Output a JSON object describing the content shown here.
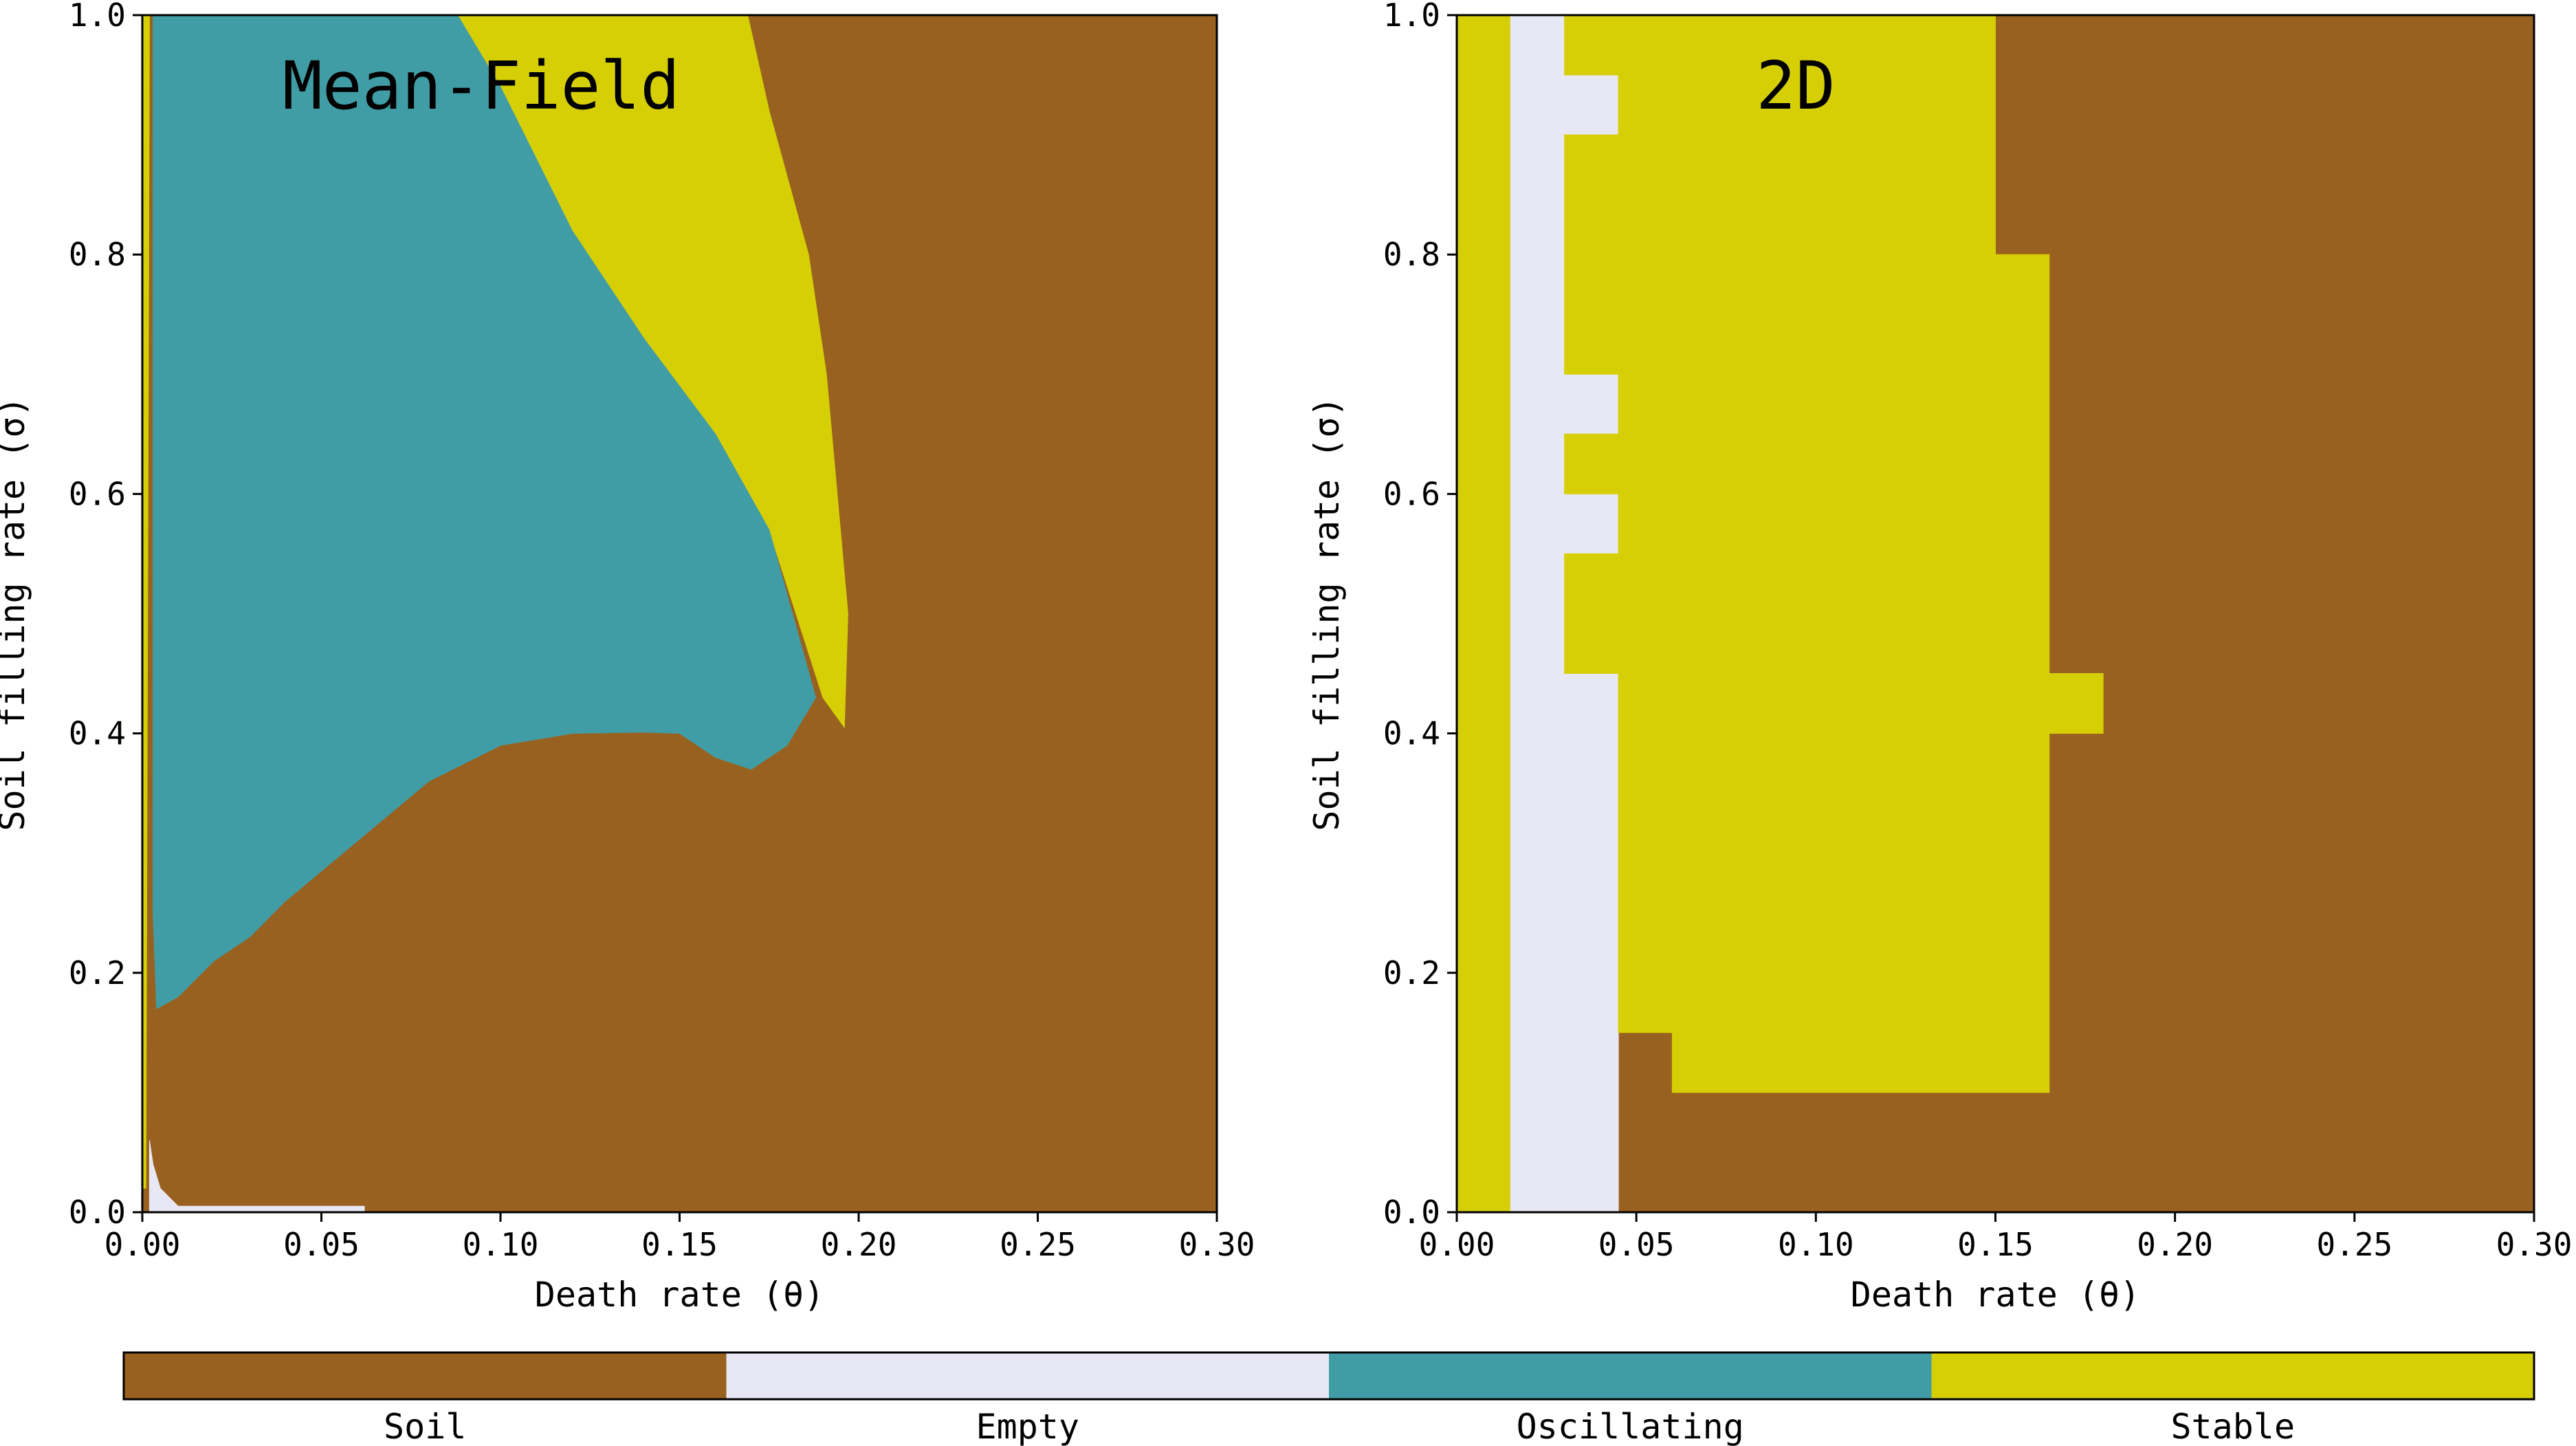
{
  "colors": {
    "soil": "#99611f",
    "empty": "#e8e8f4",
    "oscillating": "#419da5",
    "stable": "#d6cf05"
  },
  "chart_data": [
    {
      "type": "heatmap",
      "title": "Mean-Field",
      "xlabel": "Death rate (θ)",
      "ylabel": "Soil filling rate (σ)",
      "xlim": [
        0,
        0.3
      ],
      "ylim": [
        0,
        1
      ],
      "xticks": [
        "0.00",
        "0.05",
        "0.10",
        "0.15",
        "0.20",
        "0.25",
        "0.30"
      ],
      "yticks": [
        "0.0",
        "0.2",
        "0.4",
        "0.6",
        "0.8",
        "1.0"
      ],
      "regions": [
        {
          "state": "soil",
          "polygon": [
            [
              0,
              0
            ],
            [
              0.3,
              0
            ],
            [
              0.3,
              1
            ],
            [
              0,
              1
            ]
          ]
        },
        {
          "state": "stable",
          "polygon": [
            [
              0.001,
              0.02
            ],
            [
              0.002,
              1.0
            ],
            [
              0.088,
              1.0
            ],
            [
              0.1,
              0.94
            ],
            [
              0.12,
              0.82
            ],
            [
              0.14,
              0.73
            ],
            [
              0.16,
              0.65
            ],
            [
              0.175,
              0.57
            ],
            [
              0.19,
              0.43
            ],
            [
              0.196,
              0.405
            ],
            [
              0.197,
              0.5
            ],
            [
              0.191,
              0.7
            ],
            [
              0.186,
              0.8
            ],
            [
              0.175,
              0.92
            ],
            [
              0.169,
              1.0
            ],
            [
              0.001,
              1.0
            ],
            [
              0.0,
              1.0
            ],
            [
              0.0,
              0.02
            ]
          ]
        },
        {
          "state": "oscillating",
          "polygon": [
            [
              0.003,
              1.0
            ],
            [
              0.088,
              1.0
            ],
            [
              0.1,
              0.94
            ],
            [
              0.12,
              0.82
            ],
            [
              0.14,
              0.73
            ],
            [
              0.16,
              0.65
            ],
            [
              0.175,
              0.57
            ],
            [
              0.188,
              0.43
            ],
            [
              0.18,
              0.39
            ],
            [
              0.17,
              0.37
            ],
            [
              0.16,
              0.38
            ],
            [
              0.15,
              0.4
            ],
            [
              0.14,
              0.401
            ],
            [
              0.12,
              0.4
            ],
            [
              0.1,
              0.39
            ],
            [
              0.08,
              0.36
            ],
            [
              0.06,
              0.31
            ],
            [
              0.04,
              0.26
            ],
            [
              0.03,
              0.23
            ],
            [
              0.02,
              0.21
            ],
            [
              0.01,
              0.18
            ],
            [
              0.004,
              0.17
            ],
            [
              0.003,
              0.25
            ],
            [
              0.003,
              0.33
            ]
          ]
        },
        {
          "state": "empty",
          "polygon": [
            [
              0.002,
              0.0
            ],
            [
              0.062,
              0.0
            ],
            [
              0.062,
              0.005
            ],
            [
              0.01,
              0.005
            ],
            [
              0.005,
              0.02
            ],
            [
              0.003,
              0.04
            ],
            [
              0.002,
              0.06
            ]
          ]
        }
      ]
    },
    {
      "type": "heatmap",
      "title": "2D",
      "xlabel": "Death rate (θ)",
      "ylabel": "Soil filling rate (σ)",
      "xlim": [
        0,
        0.3
      ],
      "ylim": [
        0,
        1
      ],
      "xticks": [
        "0.00",
        "0.05",
        "0.10",
        "0.15",
        "0.20",
        "0.25",
        "0.30"
      ],
      "yticks": [
        "0.0",
        "0.2",
        "0.4",
        "0.6",
        "0.8",
        "1.0"
      ],
      "regions": [
        {
          "state": "soil",
          "polygon": [
            [
              0,
              0
            ],
            [
              0.3,
              0
            ],
            [
              0.3,
              1
            ],
            [
              0,
              1
            ]
          ]
        },
        {
          "state": "stable",
          "polygon": [
            [
              0,
              0
            ],
            [
              0.015,
              0
            ],
            [
              0.015,
              1
            ],
            [
              0,
              1
            ]
          ]
        },
        {
          "state": "empty",
          "polygon": [
            [
              0.015,
              0
            ],
            [
              0.045,
              0
            ],
            [
              0.045,
              1
            ],
            [
              0.015,
              1
            ]
          ]
        },
        {
          "state": "stable",
          "polygon": [
            [
              0.045,
              0.15
            ],
            [
              0.06,
              0.15
            ],
            [
              0.06,
              0.1
            ],
            [
              0.165,
              0.1
            ],
            [
              0.165,
              0.4
            ],
            [
              0.18,
              0.4
            ],
            [
              0.18,
              0.45
            ],
            [
              0.165,
              0.45
            ],
            [
              0.165,
              0.8
            ],
            [
              0.15,
              0.8
            ],
            [
              0.15,
              1.0
            ],
            [
              0.03,
              1.0
            ],
            [
              0.03,
              0.95
            ],
            [
              0.045,
              0.95
            ],
            [
              0.045,
              0.9
            ],
            [
              0.03,
              0.9
            ],
            [
              0.03,
              0.7
            ],
            [
              0.045,
              0.7
            ],
            [
              0.045,
              0.65
            ],
            [
              0.03,
              0.65
            ],
            [
              0.03,
              0.6
            ],
            [
              0.045,
              0.6
            ],
            [
              0.045,
              0.55
            ],
            [
              0.03,
              0.55
            ],
            [
              0.03,
              0.45
            ],
            [
              0.045,
              0.45
            ]
          ]
        }
      ]
    }
  ],
  "colorbar": {
    "entries": [
      {
        "label": "Soil",
        "state": "soil"
      },
      {
        "label": "Empty",
        "state": "empty"
      },
      {
        "label": "Oscillating",
        "state": "oscillating"
      },
      {
        "label": "Stable",
        "state": "stable"
      }
    ]
  }
}
